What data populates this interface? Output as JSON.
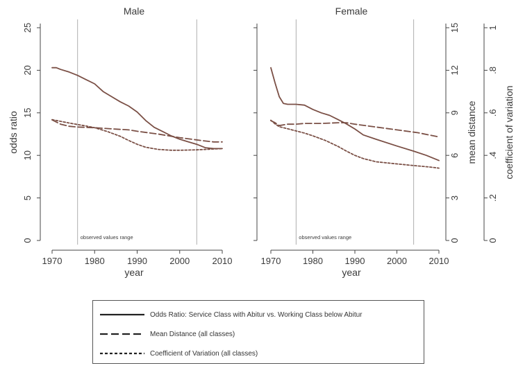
{
  "figure": {
    "x_axis_label": "year",
    "left_y_label": "odds ratio",
    "right_y_label_1": "mean distance",
    "right_y_label_2": "coefficient of variation",
    "observed_range_label": "observed values range"
  },
  "chart_data": [
    {
      "type": "line",
      "title": "Male",
      "xlabel": "year",
      "ylabel": "odds ratio",
      "xlim": [
        1970,
        2010
      ],
      "ylim": [
        0,
        25
      ],
      "x_ticks": [
        1970,
        1980,
        1990,
        2000,
        2010
      ],
      "y_ticks": [
        0,
        5,
        10,
        15,
        20,
        25
      ],
      "observed_range": [
        1976,
        2004
      ],
      "series": [
        {
          "name": "Odds Ratio: Service Class with Abitur vs. Working Class below Abitur",
          "style": "solid",
          "x": [
            1970,
            1971,
            1972,
            1974,
            1976,
            1978,
            1980,
            1982,
            1984,
            1986,
            1988,
            1990,
            1992,
            1994,
            1996,
            1998,
            2000,
            2002,
            2004,
            2006,
            2008,
            2010
          ],
          "y": [
            20.3,
            20.3,
            20.1,
            19.8,
            19.4,
            18.9,
            18.4,
            17.5,
            16.9,
            16.3,
            15.8,
            15.1,
            14.1,
            13.3,
            12.8,
            12.3,
            11.9,
            11.6,
            11.3,
            10.9,
            10.8,
            10.8
          ]
        },
        {
          "name": "Mean Distance (all classes)",
          "style": "long-dash",
          "x": [
            1970,
            1972,
            1974,
            1976,
            1980,
            1985,
            1988,
            1990,
            1995,
            2000,
            2005,
            2008,
            2010
          ],
          "y": [
            8.5,
            8.2,
            8.05,
            8.0,
            7.95,
            7.85,
            7.8,
            7.7,
            7.5,
            7.25,
            7.05,
            6.95,
            6.95
          ]
        },
        {
          "name": "Coefficient of Variation (all classes)",
          "style": "short-dash",
          "x": [
            1970,
            1972,
            1974,
            1976,
            1978,
            1980,
            1983,
            1986,
            1988,
            1990,
            1992,
            1995,
            1998,
            2000,
            2004,
            2008,
            2010
          ],
          "y": [
            0.568,
            0.56,
            0.552,
            0.545,
            0.538,
            0.53,
            0.512,
            0.49,
            0.47,
            0.452,
            0.438,
            0.428,
            0.424,
            0.424,
            0.426,
            0.43,
            0.432
          ]
        }
      ]
    },
    {
      "type": "line",
      "title": "Female",
      "xlabel": "year",
      "ylabel": "odds ratio",
      "xlim": [
        1970,
        2010
      ],
      "ylim": [
        0,
        25
      ],
      "x_ticks": [
        1970,
        1980,
        1990,
        2000,
        2010
      ],
      "right_axis_mean_distance": {
        "ylim": [
          0,
          15
        ],
        "ticks": [
          0,
          3,
          6,
          9,
          12,
          15
        ]
      },
      "right_axis_coefficient_of_variation": {
        "ylim": [
          0,
          1
        ],
        "ticks": [
          "0",
          ".2",
          ".4",
          ".6",
          ".8",
          "1"
        ]
      },
      "observed_range": [
        1976,
        2004
      ],
      "series": [
        {
          "name": "Odds Ratio: Service Class with Abitur vs. Working Class below Abitur",
          "style": "solid",
          "x": [
            1970,
            1971,
            1972,
            1973,
            1974,
            1976,
            1978,
            1980,
            1982,
            1984,
            1986,
            1988,
            1990,
            1992,
            1995,
            2000,
            2004,
            2007,
            2010
          ],
          "y": [
            20.3,
            18.5,
            16.9,
            16.1,
            16.0,
            16.0,
            15.9,
            15.4,
            15.0,
            14.7,
            14.2,
            13.7,
            13.1,
            12.4,
            11.9,
            11.1,
            10.5,
            10.0,
            9.4
          ]
        },
        {
          "name": "Mean Distance (all classes)",
          "style": "long-dash",
          "x": [
            1970,
            1971,
            1972,
            1974,
            1976,
            1978,
            1982,
            1986,
            1988,
            1990,
            1995,
            2000,
            2005,
            2010
          ],
          "y": [
            8.45,
            8.3,
            8.1,
            8.2,
            8.2,
            8.25,
            8.25,
            8.3,
            8.3,
            8.2,
            8.0,
            7.8,
            7.6,
            7.3
          ]
        },
        {
          "name": "Coefficient of Variation (all classes)",
          "style": "short-dash",
          "x": [
            1970,
            1971,
            1972,
            1974,
            1976,
            1978,
            1980,
            1983,
            1986,
            1988,
            1990,
            1992,
            1995,
            2000,
            2004,
            2008,
            2010
          ],
          "y": [
            0.565,
            0.548,
            0.535,
            0.525,
            0.515,
            0.505,
            0.492,
            0.47,
            0.442,
            0.42,
            0.4,
            0.385,
            0.37,
            0.36,
            0.352,
            0.345,
            0.34
          ]
        }
      ]
    }
  ],
  "legend": [
    {
      "label": "Odds Ratio: Service Class with Abitur vs. Working Class below Abitur",
      "style": "solid"
    },
    {
      "label": "Mean Distance (all classes)",
      "style": "long-dash"
    },
    {
      "label": "Coefficient of Variation (all classes)",
      "style": "short-dash"
    }
  ]
}
